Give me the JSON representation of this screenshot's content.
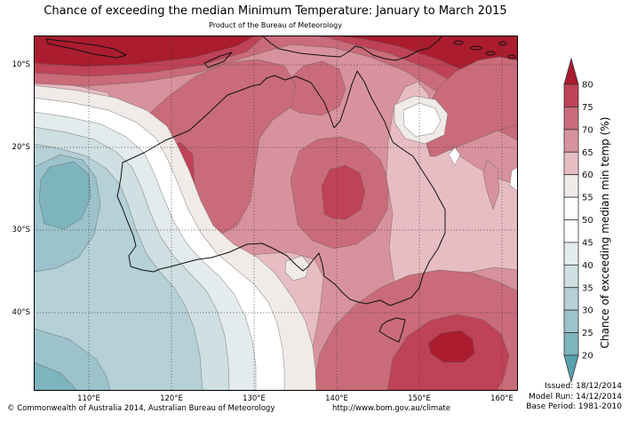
{
  "title": "Chance of exceeding the median Minimum Temperature: January to March 2015",
  "subtitle": "Product of the Bureau of Meteorology",
  "map": {
    "lat_ticks": [
      "10°S",
      "20°S",
      "30°S",
      "40°S"
    ],
    "lon_ticks": [
      "110°E",
      "120°E",
      "130°E",
      "140°E",
      "150°E",
      "160°E"
    ]
  },
  "colorbar": {
    "label": "Chance of exceeding median min temp (%)",
    "ticks": [
      "80",
      "75",
      "70",
      "65",
      "60",
      "55",
      "50",
      "45",
      "40",
      "35",
      "30",
      "25",
      "20"
    ],
    "over_color": "#aa1c2e",
    "under_color": "#59a1ad",
    "outline_color": "#333333",
    "segments": [
      {
        "range": "75-80",
        "color": "#bf4256"
      },
      {
        "range": "70-75",
        "color": "#ca6b79"
      },
      {
        "range": "65-70",
        "color": "#d8929d"
      },
      {
        "range": "60-65",
        "color": "#e7bdc3"
      },
      {
        "range": "55-60",
        "color": "#f0ebe8"
      },
      {
        "range": "50-55",
        "color": "#ffffff"
      },
      {
        "range": "45-50",
        "color": "#ffffff"
      },
      {
        "range": "40-45",
        "color": "#e4ebec"
      },
      {
        "range": "35-40",
        "color": "#cfdfe2"
      },
      {
        "range": "30-35",
        "color": "#b5d0d6"
      },
      {
        "range": "25-30",
        "color": "#9cc3cb"
      },
      {
        "range": "20-25",
        "color": "#7db4bd"
      }
    ]
  },
  "footer": {
    "copyright": "© Commonwealth of Australia 2014, Australian Bureau of Meteorology",
    "url": "http://www.bom.gov.au/climate",
    "issued": "Issued: 18/12/2014",
    "model_run": "Model Run: 14/12/2014",
    "base_period": "Base Period: 1981-2010"
  },
  "map_summary": {
    "type": "filled_contour_map",
    "region": "Australia and surrounding oceans",
    "lon_range_deg_east": [
      103,
      162
    ],
    "lat_range_deg_south": [
      6.5,
      49.5
    ],
    "features": [
      {
        "area": "Tropical belt north of Australia (Java to New Guinea and Solomon Islands)",
        "value": ">80%"
      },
      {
        "area": "Indian Ocean west and southwest of Western Australia",
        "value": "20-40% minimum"
      },
      {
        "area": "Inland northwest Western Australia",
        "value": "75-80% core"
      },
      {
        "area": "Central Australia",
        "value": "75-80% core"
      },
      {
        "area": "Tasman Sea southeast of Tasmania",
        "value": ">80% core"
      },
      {
        "area": "Most of the continent",
        "value": "60-75%"
      },
      {
        "area": "Southwest WA coast and Great Australian Bight",
        "value": "45-55% transition band"
      },
      {
        "area": "Coral Sea patch east of Queensland",
        "value": "45-55%"
      }
    ]
  }
}
